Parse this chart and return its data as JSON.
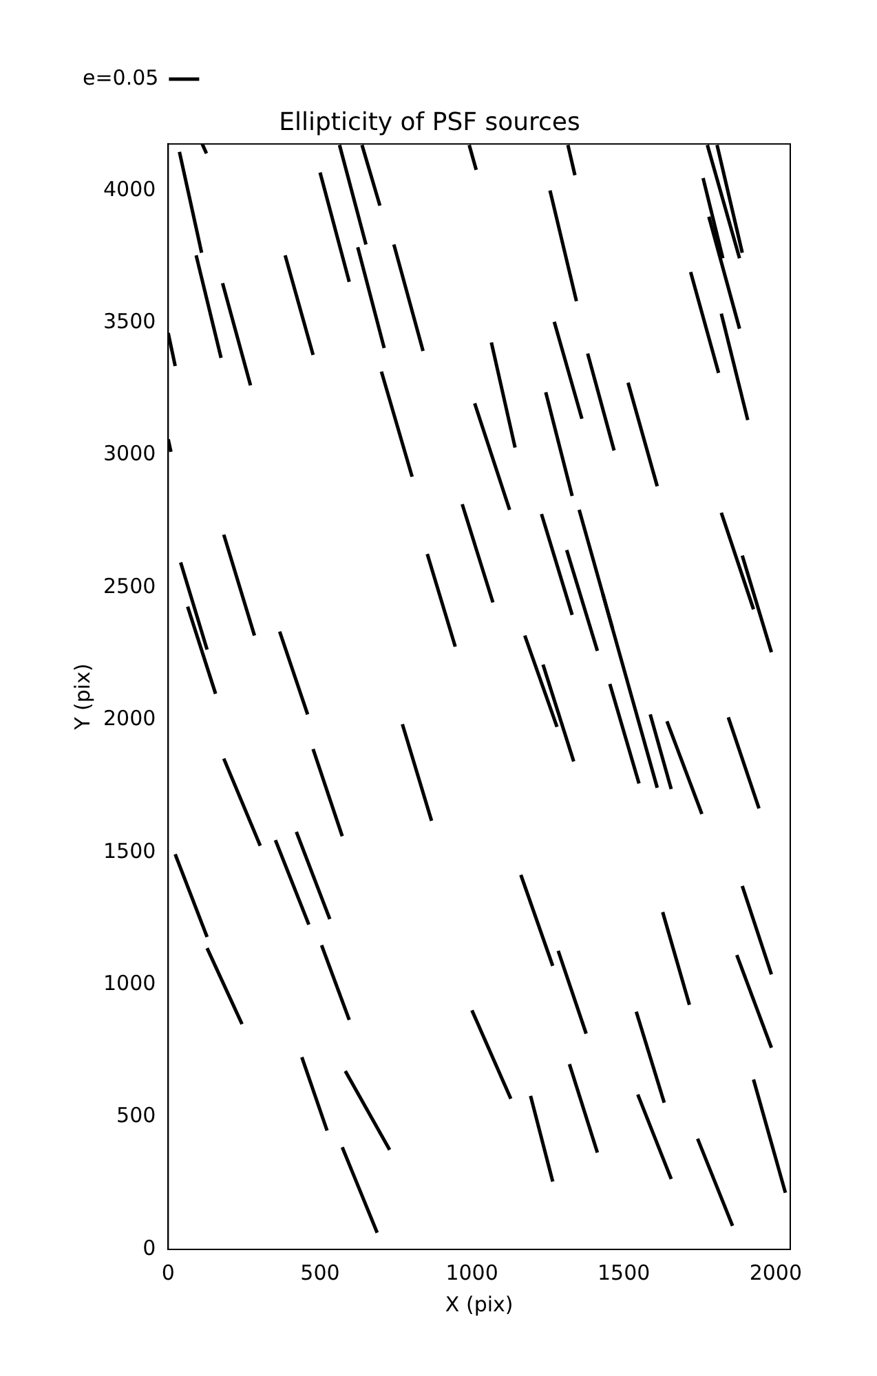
{
  "chart_data": {
    "type": "line",
    "title": "Ellipticity of PSF sources",
    "xlabel": "X (pix)",
    "ylabel": "Y (pix)",
    "xlim": [
      0,
      2048
    ],
    "ylim": [
      0,
      4176
    ],
    "xticks": [
      0,
      500,
      1000,
      1500,
      2000
    ],
    "yticks": [
      0,
      500,
      1000,
      1500,
      2000,
      2500,
      3000,
      3500,
      4000
    ],
    "legend": "top left",
    "marker": "none",
    "line_style": "solid",
    "series": [
      {
        "name": "e=0.05",
        "color": "#000000",
        "x": [
          37,
          110
        ],
        "values": [
          4146,
          3765
        ]
      },
      {
        "color": "#000000",
        "x": [
          112,
          126
        ],
        "values": [
          4176,
          4140
        ]
      },
      {
        "color": "#000000",
        "x": [
          0,
          23
        ],
        "values": [
          3462,
          3337
        ]
      },
      {
        "color": "#000000",
        "x": [
          0,
          9
        ],
        "values": [
          3060,
          3013
        ]
      },
      {
        "color": "#000000",
        "x": [
          92,
          174
        ],
        "values": [
          3755,
          3368
        ]
      },
      {
        "color": "#000000",
        "x": [
          179,
          271
        ],
        "values": [
          3650,
          3264
        ]
      },
      {
        "color": "#000000",
        "x": [
          385,
          477
        ],
        "values": [
          3755,
          3379
        ]
      },
      {
        "color": "#000000",
        "x": [
          500,
          596
        ],
        "values": [
          4068,
          3655
        ]
      },
      {
        "color": "#000000",
        "x": [
          564,
          651
        ],
        "values": [
          4172,
          3796
        ]
      },
      {
        "color": "#000000",
        "x": [
          638,
          697
        ],
        "values": [
          4172,
          3943
        ]
      },
      {
        "color": "#000000",
        "x": [
          624,
          711
        ],
        "values": [
          3786,
          3405
        ]
      },
      {
        "color": "#000000",
        "x": [
          743,
          839
        ],
        "values": [
          3796,
          3394
        ]
      },
      {
        "color": "#000000",
        "x": [
          702,
          803
        ],
        "values": [
          3316,
          2919
        ]
      },
      {
        "color": "#000000",
        "x": [
          991,
          1014
        ],
        "values": [
          4172,
          4078
        ]
      },
      {
        "color": "#000000",
        "x": [
          1009,
          1124
        ],
        "values": [
          3196,
          2794
        ]
      },
      {
        "color": "#000000",
        "x": [
          1064,
          1142
        ],
        "values": [
          3426,
          3029
        ]
      },
      {
        "color": "#000000",
        "x": [
          1316,
          1339
        ],
        "values": [
          4172,
          4058
        ]
      },
      {
        "color": "#000000",
        "x": [
          1257,
          1344
        ],
        "values": [
          4000,
          3582
        ]
      },
      {
        "color": "#000000",
        "x": [
          1271,
          1362
        ],
        "values": [
          3504,
          3138
        ]
      },
      {
        "color": "#000000",
        "x": [
          1243,
          1330
        ],
        "values": [
          3238,
          2846
        ]
      },
      {
        "color": "#000000",
        "x": [
          1381,
          1468
        ],
        "values": [
          3384,
          3018
        ]
      },
      {
        "color": "#000000",
        "x": [
          1514,
          1610
        ],
        "values": [
          3274,
          2883
        ]
      },
      {
        "color": "#000000",
        "x": [
          1775,
          1881
        ],
        "values": [
          4172,
          3744
        ]
      },
      {
        "color": "#000000",
        "x": [
          1807,
          1890
        ],
        "values": [
          4172,
          3765
        ]
      },
      {
        "color": "#000000",
        "x": [
          1761,
          1826
        ],
        "values": [
          4047,
          3744
        ]
      },
      {
        "color": "#000000",
        "x": [
          1780,
          1881
        ],
        "values": [
          3901,
          3478
        ]
      },
      {
        "color": "#000000",
        "x": [
          1720,
          1812
        ],
        "values": [
          3692,
          3311
        ]
      },
      {
        "color": "#000000",
        "x": [
          1821,
          1908
        ],
        "values": [
          3535,
          3133
        ]
      },
      {
        "color": "#000000",
        "x": [
          1821,
          1927
        ],
        "values": [
          2783,
          2418
        ]
      },
      {
        "color": "#000000",
        "x": [
          1890,
          1986
        ],
        "values": [
          2621,
          2256
        ]
      },
      {
        "color": "#000000",
        "x": [
          1844,
          1945
        ],
        "values": [
          2010,
          1666
        ]
      },
      {
        "color": "#000000",
        "x": [
          1890,
          1986
        ],
        "values": [
          1373,
          1039
        ]
      },
      {
        "color": "#000000",
        "x": [
          1872,
          1986
        ],
        "values": [
          1112,
          762
        ]
      },
      {
        "color": "#000000",
        "x": [
          1927,
          2032
        ],
        "values": [
          642,
          214
        ]
      },
      {
        "color": "#000000",
        "x": [
          1628,
          1716
        ],
        "values": [
          1274,
          924
        ]
      },
      {
        "color": "#000000",
        "x": [
          1541,
          1633
        ],
        "values": [
          898,
          554
        ]
      },
      {
        "color": "#000000",
        "x": [
          1743,
          1858
        ],
        "values": [
          418,
          89
        ]
      },
      {
        "color": "#000000",
        "x": [
          1546,
          1656
        ],
        "values": [
          585,
          266
        ]
      },
      {
        "color": "#000000",
        "x": [
          1321,
          1413
        ],
        "values": [
          700,
          366
        ]
      },
      {
        "color": "#000000",
        "x": [
          1193,
          1266
        ],
        "values": [
          580,
          256
        ]
      },
      {
        "color": "#000000",
        "x": [
          1000,
          1128
        ],
        "values": [
          903,
          569
        ]
      },
      {
        "color": "#000000",
        "x": [
          1284,
          1376
        ],
        "values": [
          1128,
          815
        ]
      },
      {
        "color": "#000000",
        "x": [
          1161,
          1266
        ],
        "values": [
          1415,
          1071
        ]
      },
      {
        "color": "#000000",
        "x": [
          573,
          688
        ],
        "values": [
          386,
          63
        ]
      },
      {
        "color": "#000000",
        "x": [
          440,
          523
        ],
        "values": [
          726,
          449
        ]
      },
      {
        "color": "#000000",
        "x": [
          583,
          729
        ],
        "values": [
          674,
          376
        ]
      },
      {
        "color": "#000000",
        "x": [
          505,
          596
        ],
        "values": [
          1149,
          867
        ]
      },
      {
        "color": "#000000",
        "x": [
          128,
          243
        ],
        "values": [
          1138,
          851
        ]
      },
      {
        "color": "#000000",
        "x": [
          23,
          128
        ],
        "values": [
          1493,
          1180
        ]
      },
      {
        "color": "#000000",
        "x": [
          422,
          532
        ],
        "values": [
          1577,
          1248
        ]
      },
      {
        "color": "#000000",
        "x": [
          353,
          463
        ],
        "values": [
          1546,
          1227
        ]
      },
      {
        "color": "#000000",
        "x": [
          183,
          303
        ],
        "values": [
          1854,
          1525
        ]
      },
      {
        "color": "#000000",
        "x": [
          771,
          867
        ],
        "values": [
          1984,
          1619
        ]
      },
      {
        "color": "#000000",
        "x": [
          477,
          573
        ],
        "values": [
          1890,
          1561
        ]
      },
      {
        "color": "#000000",
        "x": [
          1174,
          1280
        ],
        "values": [
          2319,
          1974
        ]
      },
      {
        "color": "#000000",
        "x": [
          1234,
          1335
        ],
        "values": [
          2209,
          1843
        ]
      },
      {
        "color": "#000000",
        "x": [
          1229,
          1330
        ],
        "values": [
          2778,
          2397
        ]
      },
      {
        "color": "#000000",
        "x": [
          1312,
          1413
        ],
        "values": [
          2642,
          2261
        ]
      },
      {
        "color": "#000000",
        "x": [
          1353,
          1463
        ],
        "values": [
          2794,
          2345
        ]
      },
      {
        "color": "#000000",
        "x": [
          1431,
          1610
        ],
        "values": [
          2475,
          1744
        ]
      },
      {
        "color": "#000000",
        "x": [
          1454,
          1550
        ],
        "values": [
          2136,
          1760
        ]
      },
      {
        "color": "#000000",
        "x": [
          1587,
          1656
        ],
        "values": [
          2021,
          1739
        ]
      },
      {
        "color": "#000000",
        "x": [
          1642,
          1757
        ],
        "values": [
          1995,
          1645
        ]
      },
      {
        "color": "#000000",
        "x": [
          853,
          945
        ],
        "values": [
          2627,
          2277
        ]
      },
      {
        "color": "#000000",
        "x": [
          968,
          1069
        ],
        "values": [
          2815,
          2444
        ]
      },
      {
        "color": "#000000",
        "x": [
          41,
          128
        ],
        "values": [
          2595,
          2266
        ]
      },
      {
        "color": "#000000",
        "x": [
          64,
          156
        ],
        "values": [
          2428,
          2099
        ]
      },
      {
        "color": "#000000",
        "x": [
          183,
          284
        ],
        "values": [
          2700,
          2319
        ]
      },
      {
        "color": "#000000",
        "x": [
          367,
          459
        ],
        "values": [
          2334,
          2021
        ]
      }
    ]
  }
}
